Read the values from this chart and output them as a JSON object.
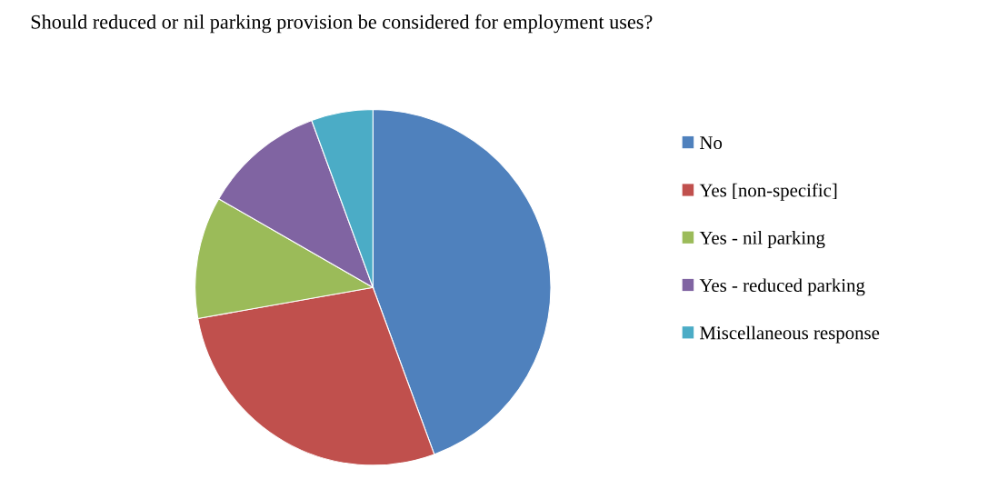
{
  "chart_data": {
    "type": "pie",
    "title": "Should reduced or nil parking provision be considered for employment uses?",
    "categories": [
      "No",
      "Yes [non-specific]",
      "Yes - nil parking",
      "Yes - reduced parking",
      "Miscellaneous response"
    ],
    "values": [
      44.4,
      27.8,
      11.1,
      11.1,
      5.6
    ],
    "colors": [
      "#4f81bd",
      "#c0504d",
      "#9bbb59",
      "#8064a2",
      "#4bacc6"
    ],
    "legend": "right"
  }
}
